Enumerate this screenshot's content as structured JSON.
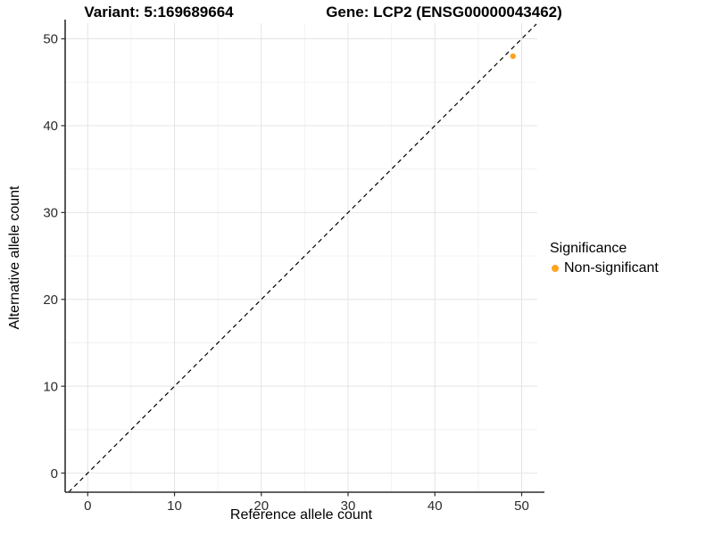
{
  "chart_data": {
    "type": "scatter",
    "titles": {
      "left": "Variant: 5:169689664",
      "right": "Gene: LCP2 (ENSG00000043462)"
    },
    "xlabel": "Reference allele count",
    "ylabel": "Alternative allele count",
    "xlim": [
      -2.6,
      51.8
    ],
    "ylim": [
      -2.2,
      51.8
    ],
    "xticks": [
      0,
      10,
      20,
      30,
      40,
      50
    ],
    "yticks": [
      0,
      10,
      20,
      30,
      40,
      50
    ],
    "xminor": [
      5,
      15,
      25,
      35,
      45
    ],
    "yminor": [
      5,
      15,
      25,
      35,
      45
    ],
    "grid": "major+minor, no panel border, left and bottom axis lines only",
    "identity_line": {
      "style": "dashed",
      "color": "#000000",
      "from": [
        -2.2,
        -2.2
      ],
      "to": [
        51.7,
        51.7
      ]
    },
    "series": [
      {
        "name": "Non-significant",
        "color": "#FFA320",
        "points": [
          {
            "x": 49,
            "y": 48
          }
        ]
      }
    ],
    "legend": {
      "title": "Significance",
      "position": "right",
      "items": [
        {
          "label": "Non-significant",
          "color": "#FFA320"
        }
      ]
    },
    "colors": {
      "grid_major": "#E4E4E4",
      "grid_minor": "#F1F1F1",
      "axis_line": "#2E2E2E",
      "tick_text": "#2B2B2B"
    }
  }
}
